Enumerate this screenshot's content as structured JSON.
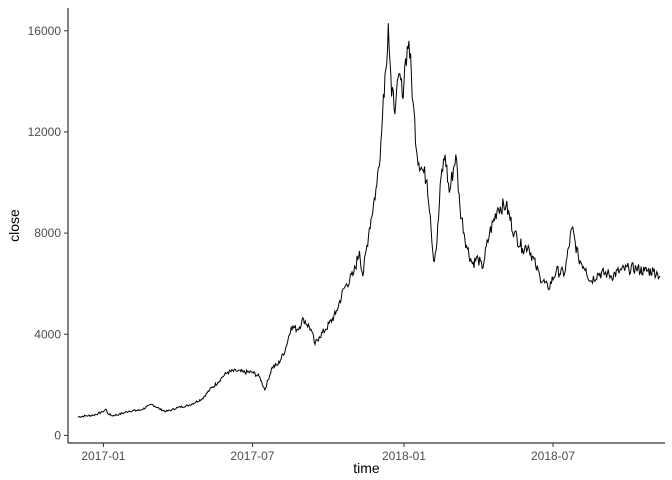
{
  "chart_data": {
    "type": "line",
    "xlabel": "time",
    "ylabel": "close",
    "xlim": [
      "2016-11-19",
      "2018-11-14"
    ],
    "ylim": [
      -300,
      16900
    ],
    "y_ticks": [
      0,
      4000,
      8000,
      12000,
      16000
    ],
    "y_tick_labels": [
      "0",
      "4000",
      "8000",
      "12000",
      "16000"
    ],
    "x_ticks": [
      "2017-01-01",
      "2017-07-01",
      "2018-01-01",
      "2018-07-01"
    ],
    "x_tick_labels": [
      "2017-01",
      "2017-07",
      "2018-01",
      "2018-07"
    ],
    "grid": false,
    "legend": "none",
    "line_color": "#000000",
    "series": [
      {
        "x": [
          "2016-12-01",
          "2016-12-10",
          "2016-12-20",
          "2016-12-31",
          "2017-01-04",
          "2017-01-06",
          "2017-01-11",
          "2017-01-20",
          "2017-02-01",
          "2017-02-15",
          "2017-03-01",
          "2017-03-10",
          "2017-03-18",
          "2017-03-25",
          "2017-04-01",
          "2017-04-15",
          "2017-05-01",
          "2017-05-10",
          "2017-05-20",
          "2017-05-25",
          "2017-06-01",
          "2017-06-11",
          "2017-06-20",
          "2017-07-01",
          "2017-07-10",
          "2017-07-16",
          "2017-07-25",
          "2017-08-01",
          "2017-08-10",
          "2017-08-17",
          "2017-08-25",
          "2017-09-01",
          "2017-09-10",
          "2017-09-15",
          "2017-09-20",
          "2017-09-28",
          "2017-10-10",
          "2017-10-20",
          "2017-11-01",
          "2017-11-08",
          "2017-11-12",
          "2017-11-20",
          "2017-11-29",
          "2017-12-05",
          "2017-12-07",
          "2017-12-10",
          "2017-12-13",
          "2017-12-17",
          "2017-12-22",
          "2017-12-27",
          "2017-12-30",
          "2018-01-03",
          "2018-01-07",
          "2018-01-12",
          "2018-01-17",
          "2018-01-22",
          "2018-01-29",
          "2018-02-02",
          "2018-02-06",
          "2018-02-10",
          "2018-02-15",
          "2018-02-20",
          "2018-02-25",
          "2018-03-05",
          "2018-03-10",
          "2018-03-18",
          "2018-03-25",
          "2018-04-01",
          "2018-04-06",
          "2018-04-15",
          "2018-04-25",
          "2018-05-05",
          "2018-05-15",
          "2018-05-25",
          "2018-06-01",
          "2018-06-10",
          "2018-06-15",
          "2018-06-25",
          "2018-07-05",
          "2018-07-15",
          "2018-07-24",
          "2018-08-01",
          "2018-08-10",
          "2018-08-15",
          "2018-08-25",
          "2018-09-05",
          "2018-09-10",
          "2018-09-20",
          "2018-10-01",
          "2018-10-10",
          "2018-10-20",
          "2018-10-31",
          "2018-11-05",
          "2018-11-08"
        ],
        "y": [
          730,
          770,
          800,
          930,
          1040,
          880,
          780,
          830,
          960,
          1000,
          1230,
          1050,
          950,
          1010,
          1100,
          1190,
          1450,
          1800,
          2100,
          2300,
          2500,
          2550,
          2500,
          2500,
          2300,
          1800,
          2700,
          2800,
          3400,
          4300,
          4200,
          4600,
          4200,
          3600,
          3900,
          4200,
          4800,
          5800,
          6400,
          7300,
          6300,
          8200,
          9900,
          12000,
          13500,
          14500,
          16300,
          13400,
          13100,
          14300,
          13400,
          14900,
          15600,
          13200,
          11100,
          10600,
          10100,
          8700,
          6900,
          7600,
          10200,
          11100,
          9600,
          11100,
          9000,
          7500,
          6800,
          7000,
          6600,
          8000,
          9000,
          9100,
          8000,
          7400,
          7500,
          6700,
          6300,
          5800,
          6500,
          6400,
          8200,
          7000,
          6600,
          6100,
          6400,
          6400,
          6300,
          6500,
          6600,
          6600,
          6500,
          6500,
          6400,
          6300
        ]
      }
    ]
  }
}
